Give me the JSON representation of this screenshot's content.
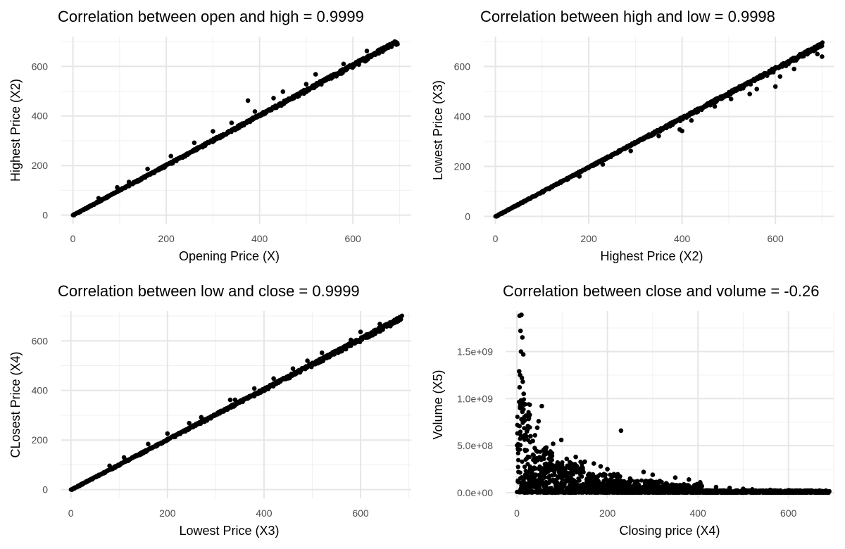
{
  "chart_data": [
    {
      "type": "scatter",
      "title": "Correlation between open and high = 0.9999",
      "xlabel": "Opening Price (X)",
      "ylabel": "Highest Price (X2)",
      "xlim": [
        -25,
        725
      ],
      "ylim": [
        -35,
        720
      ],
      "x_ticks": [
        0,
        200,
        400,
        600
      ],
      "x_tick_labels": [
        "0",
        "200",
        "400",
        "600"
      ],
      "y_ticks": [
        0,
        200,
        400,
        600
      ],
      "y_tick_labels": [
        "0",
        "200",
        "400",
        "600"
      ],
      "grid": true,
      "point_color": "#000000",
      "relationship": {
        "slope": 1.008,
        "intercept": 0,
        "x_range": [
          0,
          695
        ]
      },
      "outliers": [
        [
          375,
          462
        ],
        [
          120,
          134
        ],
        [
          210,
          238
        ],
        [
          450,
          498
        ],
        [
          520,
          568
        ],
        [
          160,
          186
        ],
        [
          300,
          338
        ],
        [
          55,
          68
        ],
        [
          630,
          662
        ],
        [
          580,
          610
        ],
        [
          430,
          472
        ],
        [
          260,
          292
        ],
        [
          390,
          418
        ],
        [
          500,
          528
        ],
        [
          340,
          372
        ],
        [
          95,
          112
        ]
      ]
    },
    {
      "type": "scatter",
      "title": "Correlation between high and low = 0.9998",
      "xlabel": "Highest Price (X2)",
      "ylabel": "Lowest Price (X3)",
      "xlim": [
        -25,
        725
      ],
      "ylim": [
        -30,
        720
      ],
      "x_ticks": [
        0,
        200,
        400,
        600
      ],
      "x_tick_labels": [
        "0",
        "200",
        "400",
        "600"
      ],
      "y_ticks": [
        0,
        200,
        400,
        600
      ],
      "y_tick_labels": [
        "0",
        "200",
        "400",
        "600"
      ],
      "grid": true,
      "point_color": "#000000",
      "relationship": {
        "slope": 0.985,
        "intercept": 0,
        "x_range": [
          0,
          700
        ]
      },
      "outliers": [
        [
          400,
          342
        ],
        [
          600,
          520
        ],
        [
          560,
          510
        ],
        [
          395,
          348
        ],
        [
          700,
          640
        ],
        [
          545,
          490
        ],
        [
          290,
          262
        ],
        [
          420,
          384
        ],
        [
          180,
          160
        ],
        [
          640,
          590
        ],
        [
          505,
          470
        ],
        [
          230,
          208
        ],
        [
          350,
          322
        ],
        [
          610,
          560
        ],
        [
          470,
          440
        ],
        [
          690,
          650
        ]
      ]
    },
    {
      "type": "scatter",
      "title": "Correlation between low and close = 0.9999",
      "xlabel": "Lowest Price (X3)",
      "ylabel": "CLosest Price (X4)",
      "xlim": [
        -20,
        705
      ],
      "ylim": [
        -35,
        720
      ],
      "x_ticks": [
        0,
        200,
        400,
        600
      ],
      "x_tick_labels": [
        "0",
        "200",
        "400",
        "600"
      ],
      "y_ticks": [
        0,
        200,
        400,
        600
      ],
      "y_tick_labels": [
        "0",
        "200",
        "400",
        "600"
      ],
      "grid": true,
      "point_color": "#000000",
      "relationship": {
        "slope": 1.012,
        "intercept": 0,
        "x_range": [
          0,
          685
        ]
      },
      "outliers": [
        [
          340,
          362
        ],
        [
          245,
          268
        ],
        [
          330,
          362
        ],
        [
          490,
          520
        ],
        [
          160,
          184
        ],
        [
          580,
          604
        ],
        [
          420,
          448
        ],
        [
          270,
          292
        ],
        [
          110,
          130
        ],
        [
          640,
          668
        ],
        [
          520,
          552
        ],
        [
          200,
          226
        ],
        [
          380,
          408
        ],
        [
          460,
          488
        ],
        [
          600,
          636
        ],
        [
          80,
          96
        ]
      ]
    },
    {
      "type": "scatter",
      "title": "Correlation between close and volume = -0.26",
      "xlabel": "Closing price (X4)",
      "ylabel": "Volume (X5)",
      "xlim": [
        -25,
        700
      ],
      "ylim": [
        -60000000,
        1930000000
      ],
      "x_ticks": [
        0,
        200,
        400,
        600
      ],
      "x_tick_labels": [
        "0",
        "200",
        "400",
        "600"
      ],
      "y_ticks": [
        0,
        500000000,
        1000000000,
        1500000000
      ],
      "y_tick_labels": [
        "0.0e+00",
        "5.0e+08",
        "1.0e+09",
        "1.5e+09"
      ],
      "grid": true,
      "point_color": "#000000",
      "points": [
        [
          6,
          1880000000
        ],
        [
          10,
          1890000000
        ],
        [
          8,
          1720000000
        ],
        [
          12,
          1650000000
        ],
        [
          9,
          1500000000
        ],
        [
          14,
          1470000000
        ],
        [
          5,
          1290000000
        ],
        [
          7,
          1250000000
        ],
        [
          11,
          1220000000
        ],
        [
          13,
          1180000000
        ],
        [
          6,
          1120000000
        ],
        [
          15,
          1050000000
        ],
        [
          9,
          980000000
        ],
        [
          18,
          940000000
        ],
        [
          7,
          900000000
        ],
        [
          12,
          860000000
        ],
        [
          20,
          820000000
        ],
        [
          10,
          780000000
        ],
        [
          55,
          920000000
        ],
        [
          48,
          760000000
        ],
        [
          45,
          690000000
        ],
        [
          40,
          610000000
        ],
        [
          230,
          660000000
        ],
        [
          98,
          560000000
        ],
        [
          80,
          520000000
        ],
        [
          65,
          480000000
        ],
        [
          30,
          600000000
        ],
        [
          25,
          700000000
        ],
        [
          35,
          550000000
        ],
        [
          22,
          650000000
        ],
        [
          70,
          420000000
        ],
        [
          110,
          360000000
        ],
        [
          150,
          330000000
        ],
        [
          170,
          310000000
        ],
        [
          200,
          250000000
        ],
        [
          185,
          280000000
        ],
        [
          130,
          380000000
        ],
        [
          280,
          220000000
        ],
        [
          300,
          190000000
        ],
        [
          350,
          160000000
        ],
        [
          380,
          140000000
        ],
        [
          405,
          110000000
        ],
        [
          398,
          90000000
        ],
        [
          290,
          120000000
        ],
        [
          250,
          150000000
        ],
        [
          120,
          290000000
        ],
        [
          90,
          320000000
        ],
        [
          60,
          400000000
        ],
        [
          140,
          250000000
        ],
        [
          160,
          200000000
        ],
        [
          210,
          170000000
        ],
        [
          330,
          100000000
        ],
        [
          440,
          60000000
        ],
        [
          500,
          40000000
        ],
        [
          560,
          30000000
        ],
        [
          600,
          25000000
        ],
        [
          650,
          20000000
        ],
        [
          690,
          15000000
        ],
        [
          470,
          50000000
        ],
        [
          520,
          35000000
        ]
      ],
      "dense_band": [
        {
          "x_from": 0,
          "x_to": 30,
          "y_max": 1000000000
        },
        {
          "x_from": 30,
          "x_to": 80,
          "y_max": 480000000
        },
        {
          "x_from": 80,
          "x_to": 150,
          "y_max": 330000000
        },
        {
          "x_from": 150,
          "x_to": 230,
          "y_max": 200000000
        },
        {
          "x_from": 230,
          "x_to": 320,
          "y_max": 130000000
        },
        {
          "x_from": 320,
          "x_to": 410,
          "y_max": 90000000
        },
        {
          "x_from": 410,
          "x_to": 690,
          "y_max": 25000000
        }
      ]
    }
  ]
}
